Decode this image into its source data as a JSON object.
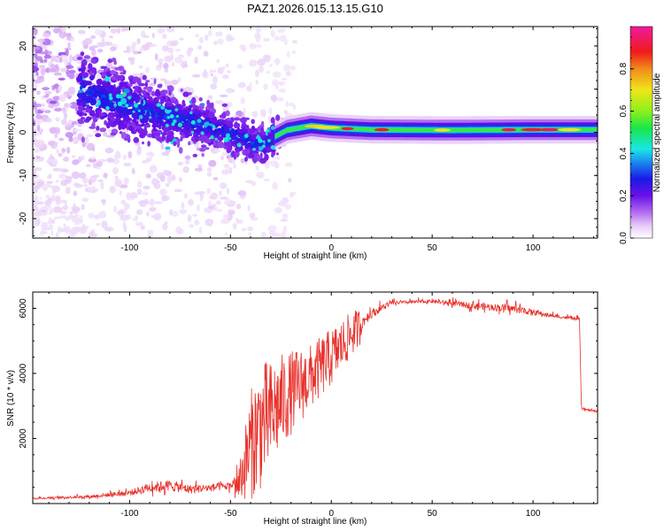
{
  "title": "PAZ1.2026.015.13.15.G10",
  "colors": {
    "snr_line": "#e8302a",
    "frame": "#000000",
    "background": "#ffffff"
  },
  "chart_data": [
    {
      "type": "heatmap",
      "name": "spectrogram",
      "xlabel": "Height of straight line (km)",
      "ylabel": "Frequency (Hz)",
      "xlim": [
        -148,
        132
      ],
      "ylim": [
        -24.5,
        24.5
      ],
      "xticks": [
        -100,
        -50,
        0,
        50,
        100
      ],
      "xtick_labels": [
        "-100",
        "-50",
        "0",
        "50",
        "100"
      ],
      "yticks": [
        20,
        10,
        0,
        -10,
        -20
      ],
      "ytick_labels": [
        "20",
        "10",
        "0",
        "-10",
        "-20"
      ],
      "colorbar": {
        "label": "Normalized spectral amplitude",
        "range": [
          0,
          1
        ],
        "ticks": [
          0.0,
          0.2,
          0.4,
          0.6,
          0.8
        ],
        "tick_labels": [
          "0.0",
          "0.2",
          "0.4",
          "0.6",
          "0.8"
        ],
        "colormap": "rainbow (white-purple-blue-cyan-green-yellow-red-magenta)"
      },
      "ridge_frequency": [
        {
          "x": -148,
          "f": 14
        },
        {
          "x": -130,
          "f": 11
        },
        {
          "x": -115,
          "f": 8
        },
        {
          "x": -100,
          "f": 6
        },
        {
          "x": -85,
          "f": 4
        },
        {
          "x": -70,
          "f": 2.5
        },
        {
          "x": -55,
          "f": 0.5
        },
        {
          "x": -45,
          "f": -1
        },
        {
          "x": -38,
          "f": -2.5
        },
        {
          "x": -33,
          "f": -3
        },
        {
          "x": -28,
          "f": -1
        },
        {
          "x": -22,
          "f": 0.5
        },
        {
          "x": -10,
          "f": 1.5
        },
        {
          "x": 0,
          "f": 1
        },
        {
          "x": 20,
          "f": 0.6
        },
        {
          "x": 60,
          "f": 0.5
        },
        {
          "x": 100,
          "f": 0.6
        },
        {
          "x": 132,
          "f": 0.6
        }
      ]
    },
    {
      "type": "line",
      "name": "snr",
      "xlabel": "Height of straight line (km)",
      "ylabel": "SNR (10 * v/v)",
      "xlim": [
        -148,
        132
      ],
      "ylim": [
        0,
        6500
      ],
      "xticks": [
        -100,
        -50,
        0,
        50,
        100
      ],
      "xtick_labels": [
        "-100",
        "-50",
        "0",
        "50",
        "100"
      ],
      "yticks": [
        2000,
        4000,
        6000
      ],
      "ytick_labels": [
        "2000",
        "4000",
        "6000"
      ],
      "envelope": [
        {
          "x": -148,
          "mean": 150,
          "spread": 80
        },
        {
          "x": -120,
          "mean": 200,
          "spread": 120
        },
        {
          "x": -100,
          "mean": 300,
          "spread": 250
        },
        {
          "x": -90,
          "mean": 450,
          "spread": 450
        },
        {
          "x": -80,
          "mean": 500,
          "spread": 500
        },
        {
          "x": -70,
          "mean": 400,
          "spread": 400
        },
        {
          "x": -60,
          "mean": 450,
          "spread": 350
        },
        {
          "x": -50,
          "mean": 500,
          "spread": 350
        },
        {
          "x": -45,
          "mean": 800,
          "spread": 700
        },
        {
          "x": -40,
          "mean": 1800,
          "spread": 1700
        },
        {
          "x": -35,
          "mean": 2400,
          "spread": 2000
        },
        {
          "x": -30,
          "mean": 2700,
          "spread": 1700
        },
        {
          "x": -25,
          "mean": 3100,
          "spread": 1500
        },
        {
          "x": -20,
          "mean": 3400,
          "spread": 1300
        },
        {
          "x": -10,
          "mean": 3900,
          "spread": 1000
        },
        {
          "x": 0,
          "mean": 4500,
          "spread": 900
        },
        {
          "x": 10,
          "mean": 5200,
          "spread": 700
        },
        {
          "x": 20,
          "mean": 5800,
          "spread": 400
        },
        {
          "x": 30,
          "mean": 6150,
          "spread": 150
        },
        {
          "x": 50,
          "mean": 6200,
          "spread": 150
        },
        {
          "x": 70,
          "mean": 6050,
          "spread": 300
        },
        {
          "x": 90,
          "mean": 5950,
          "spread": 350
        },
        {
          "x": 110,
          "mean": 5750,
          "spread": 150
        },
        {
          "x": 123,
          "mean": 5650,
          "spread": 120
        },
        {
          "x": 124,
          "mean": 2900,
          "spread": 80
        },
        {
          "x": 132,
          "mean": 2820,
          "spread": 80
        }
      ]
    }
  ]
}
